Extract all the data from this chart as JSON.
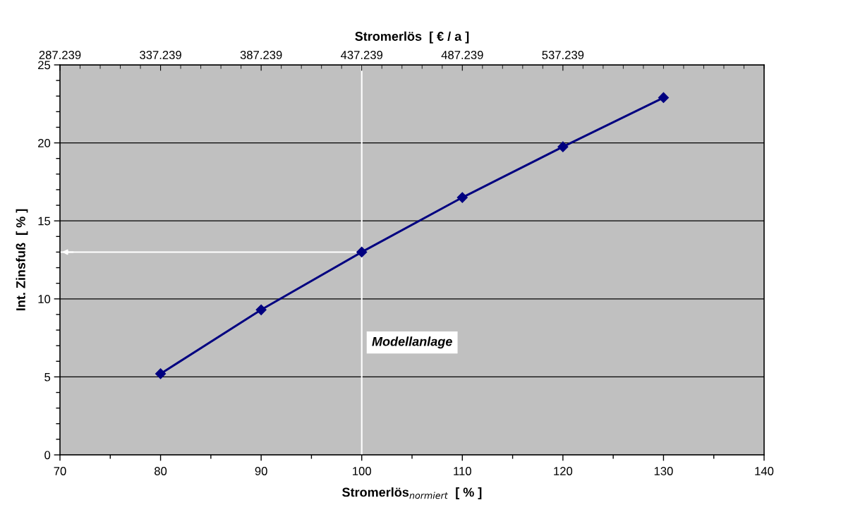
{
  "chart_data": {
    "type": "line",
    "xlabel": "Stromerlös$_{normiert}$  [ % ]",
    "ylabel": "Int. Zinsfuß  [ % ]",
    "x2label": "Stromerlös  [ € / a ]",
    "x": [
      80,
      90,
      100,
      110,
      120,
      130
    ],
    "series": [
      {
        "color": "#000080",
        "values": [
          5.2,
          9.3,
          13.0,
          16.5,
          19.75,
          22.9
        ]
      }
    ],
    "xlim": [
      70,
      140
    ],
    "xticks": [
      70,
      80,
      90,
      100,
      110,
      120,
      130,
      140
    ],
    "ylim": [
      0,
      25
    ],
    "yticks": [
      0,
      5,
      10,
      15,
      20,
      25
    ],
    "x2lim": [
      287239,
      637239
    ],
    "x2ticks": [
      {
        "value": 287239,
        "label": "287.239"
      },
      {
        "value": 337239,
        "label": "337.239"
      },
      {
        "value": 387239,
        "label": "387.239"
      },
      {
        "value": 437239,
        "label": "437.239"
      },
      {
        "value": 487239,
        "label": "487.239"
      },
      {
        "value": 537239,
        "label": "537.239"
      }
    ],
    "ref_lines": [
      {
        "axis": "x",
        "value": 100,
        "label": "Modellanlage",
        "color": "#ffffff"
      },
      {
        "axis": "y",
        "value": 13.0,
        "color": "#ffffff"
      }
    ],
    "grid": "y",
    "marker": "diamond",
    "line_style": "solid",
    "legend": false
  }
}
